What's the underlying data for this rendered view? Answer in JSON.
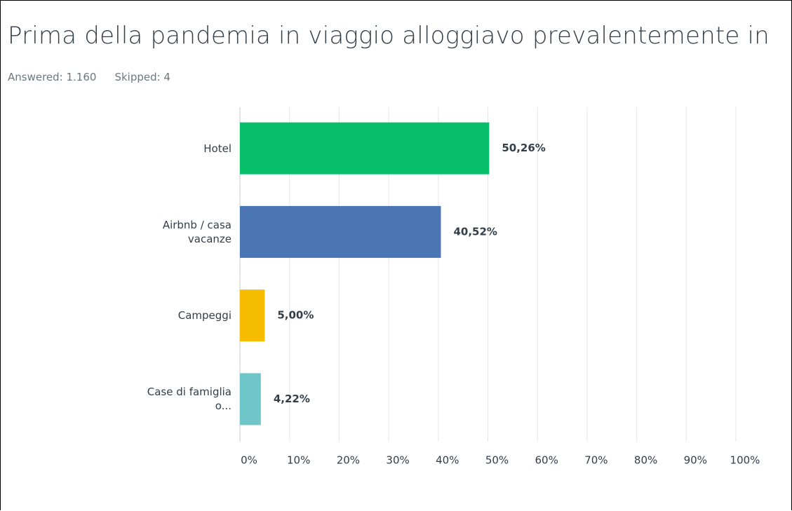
{
  "chart_data": {
    "type": "bar",
    "orientation": "horizontal",
    "title": "Prima della pandemia in viaggio alloggiavo prevalentemente in",
    "answered": "Answered: 1.160",
    "skipped": "Skipped: 4",
    "categories": [
      "Hotel",
      "Airbnb / casa vacanze",
      "Campeggi",
      "Case di famiglia o..."
    ],
    "values": [
      50.26,
      40.52,
      5.0,
      4.22
    ],
    "value_labels": [
      "50,26%",
      "40,52%",
      "5,00%",
      "4,22%"
    ],
    "colors": [
      "#08bf6c",
      "#4a76b3",
      "#f6bd00",
      "#6ec6c9"
    ],
    "xlim": [
      0,
      100
    ],
    "xticks": [
      {
        "value": 0,
        "label": "0%"
      },
      {
        "value": 10,
        "label": "10%"
      },
      {
        "value": 20,
        "label": "20%"
      },
      {
        "value": 30,
        "label": "30%"
      },
      {
        "value": 40,
        "label": "40%"
      },
      {
        "value": 50,
        "label": "50%"
      },
      {
        "value": 60,
        "label": "60%"
      },
      {
        "value": 70,
        "label": "70%"
      },
      {
        "value": 80,
        "label": "80%"
      },
      {
        "value": 90,
        "label": "90%"
      },
      {
        "value": 100,
        "label": "100%"
      }
    ],
    "grid": true
  }
}
